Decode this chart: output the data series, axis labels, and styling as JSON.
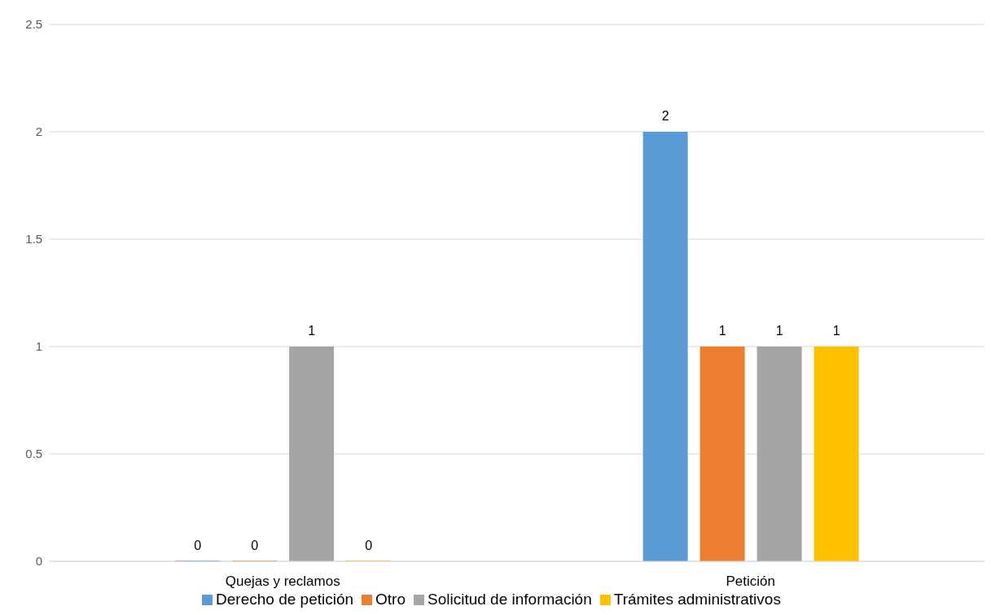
{
  "chart_data": {
    "type": "bar",
    "categories": [
      "Quejas y reclamos",
      "Petición"
    ],
    "series": [
      {
        "name": "Derecho de petición",
        "color": "#5b9bd5",
        "values": [
          0,
          2
        ]
      },
      {
        "name": "Otro",
        "color": "#ed7d31",
        "values": [
          0,
          1
        ]
      },
      {
        "name": "Solicitud de información",
        "color": "#a5a5a5",
        "values": [
          1,
          1
        ]
      },
      {
        "name": "Trámites administrativos",
        "color": "#ffc000",
        "values": [
          0,
          1
        ]
      }
    ],
    "ylim": [
      0,
      2.5
    ],
    "yticks": [
      0,
      0.5,
      1,
      1.5,
      2,
      2.5
    ],
    "grid": "y",
    "legend": "bottom",
    "data_labels": true
  }
}
